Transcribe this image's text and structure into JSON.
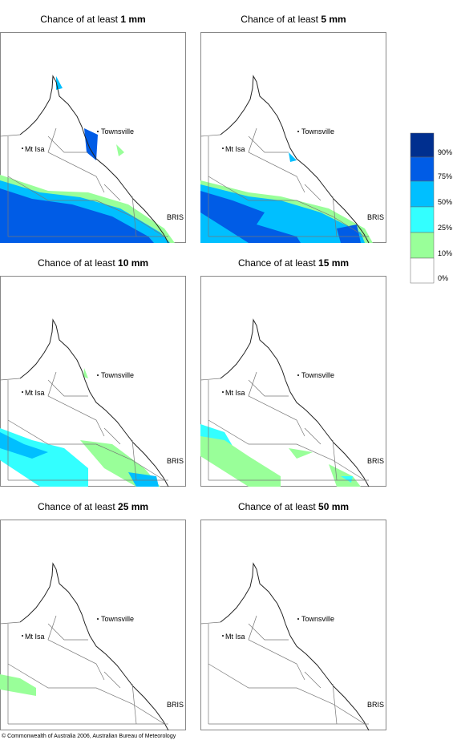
{
  "panels": [
    {
      "title_prefix": "Chance of at least",
      "amount": "1 mm"
    },
    {
      "title_prefix": "Chance of at least",
      "amount": "5 mm"
    },
    {
      "title_prefix": "Chance of at least",
      "amount": "10 mm"
    },
    {
      "title_prefix": "Chance of at least",
      "amount": "15 mm"
    },
    {
      "title_prefix": "Chance of at least",
      "amount": "25 mm"
    },
    {
      "title_prefix": "Chance of at least",
      "amount": "50 mm"
    }
  ],
  "places": {
    "townsville": "Townsville",
    "mt_isa": "Mt Isa",
    "bris": "BRIS"
  },
  "legend": {
    "labels": [
      "90%",
      "75%",
      "50%",
      "25%",
      "10%",
      "0%"
    ]
  },
  "footer": "© Commonwealth of Australia 2006, Australian Bureau of Meteorology"
}
